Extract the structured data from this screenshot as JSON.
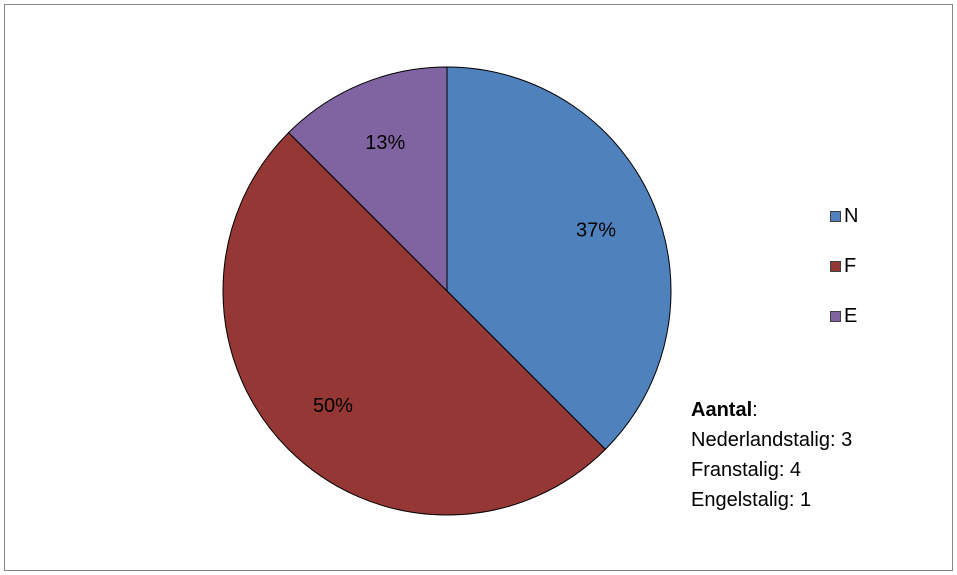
{
  "chart_data": {
    "type": "pie",
    "categories": [
      "N",
      "F",
      "E"
    ],
    "values": [
      3,
      4,
      1
    ],
    "data_labels": [
      "37%",
      "50%",
      "13%"
    ],
    "colors": [
      "#4F81BD",
      "#953735",
      "#8064A2"
    ],
    "legend_position": "right"
  },
  "note": {
    "heading": "Aantal",
    "colon": ":",
    "lines": [
      "Nederlandstalig: 3",
      "Franstalig: 4",
      "Engelstalig: 1"
    ]
  }
}
